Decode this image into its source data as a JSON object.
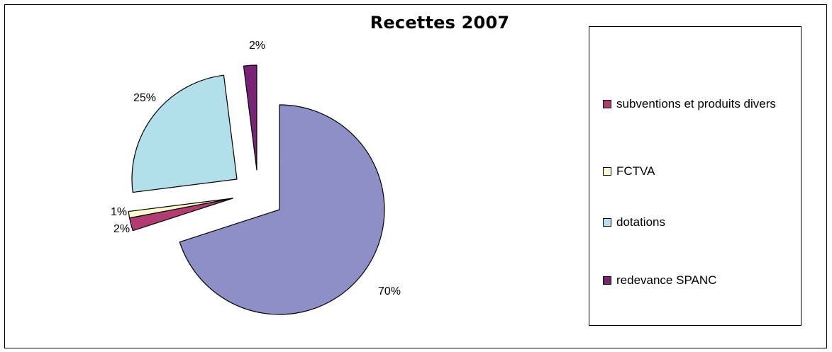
{
  "chart_data": {
    "type": "pie",
    "title": "Recettes 2007",
    "exploded": true,
    "legend_position": "right",
    "slices": [
      {
        "name": "subventions et produits divers",
        "value": 2,
        "label": "2%",
        "color": "#b03c72"
      },
      {
        "name": "FCTVA",
        "value": 1,
        "label": "1%",
        "color": "#fffacc"
      },
      {
        "name": "dotations",
        "value": 25,
        "label": "25%",
        "color": "#b1dfea"
      },
      {
        "name": "redevance SPANC",
        "value": 2,
        "label": "2%",
        "color": "#7a2278"
      },
      {
        "name": "",
        "value": 70,
        "label": "70%",
        "color": "#8f8fc8"
      }
    ]
  }
}
